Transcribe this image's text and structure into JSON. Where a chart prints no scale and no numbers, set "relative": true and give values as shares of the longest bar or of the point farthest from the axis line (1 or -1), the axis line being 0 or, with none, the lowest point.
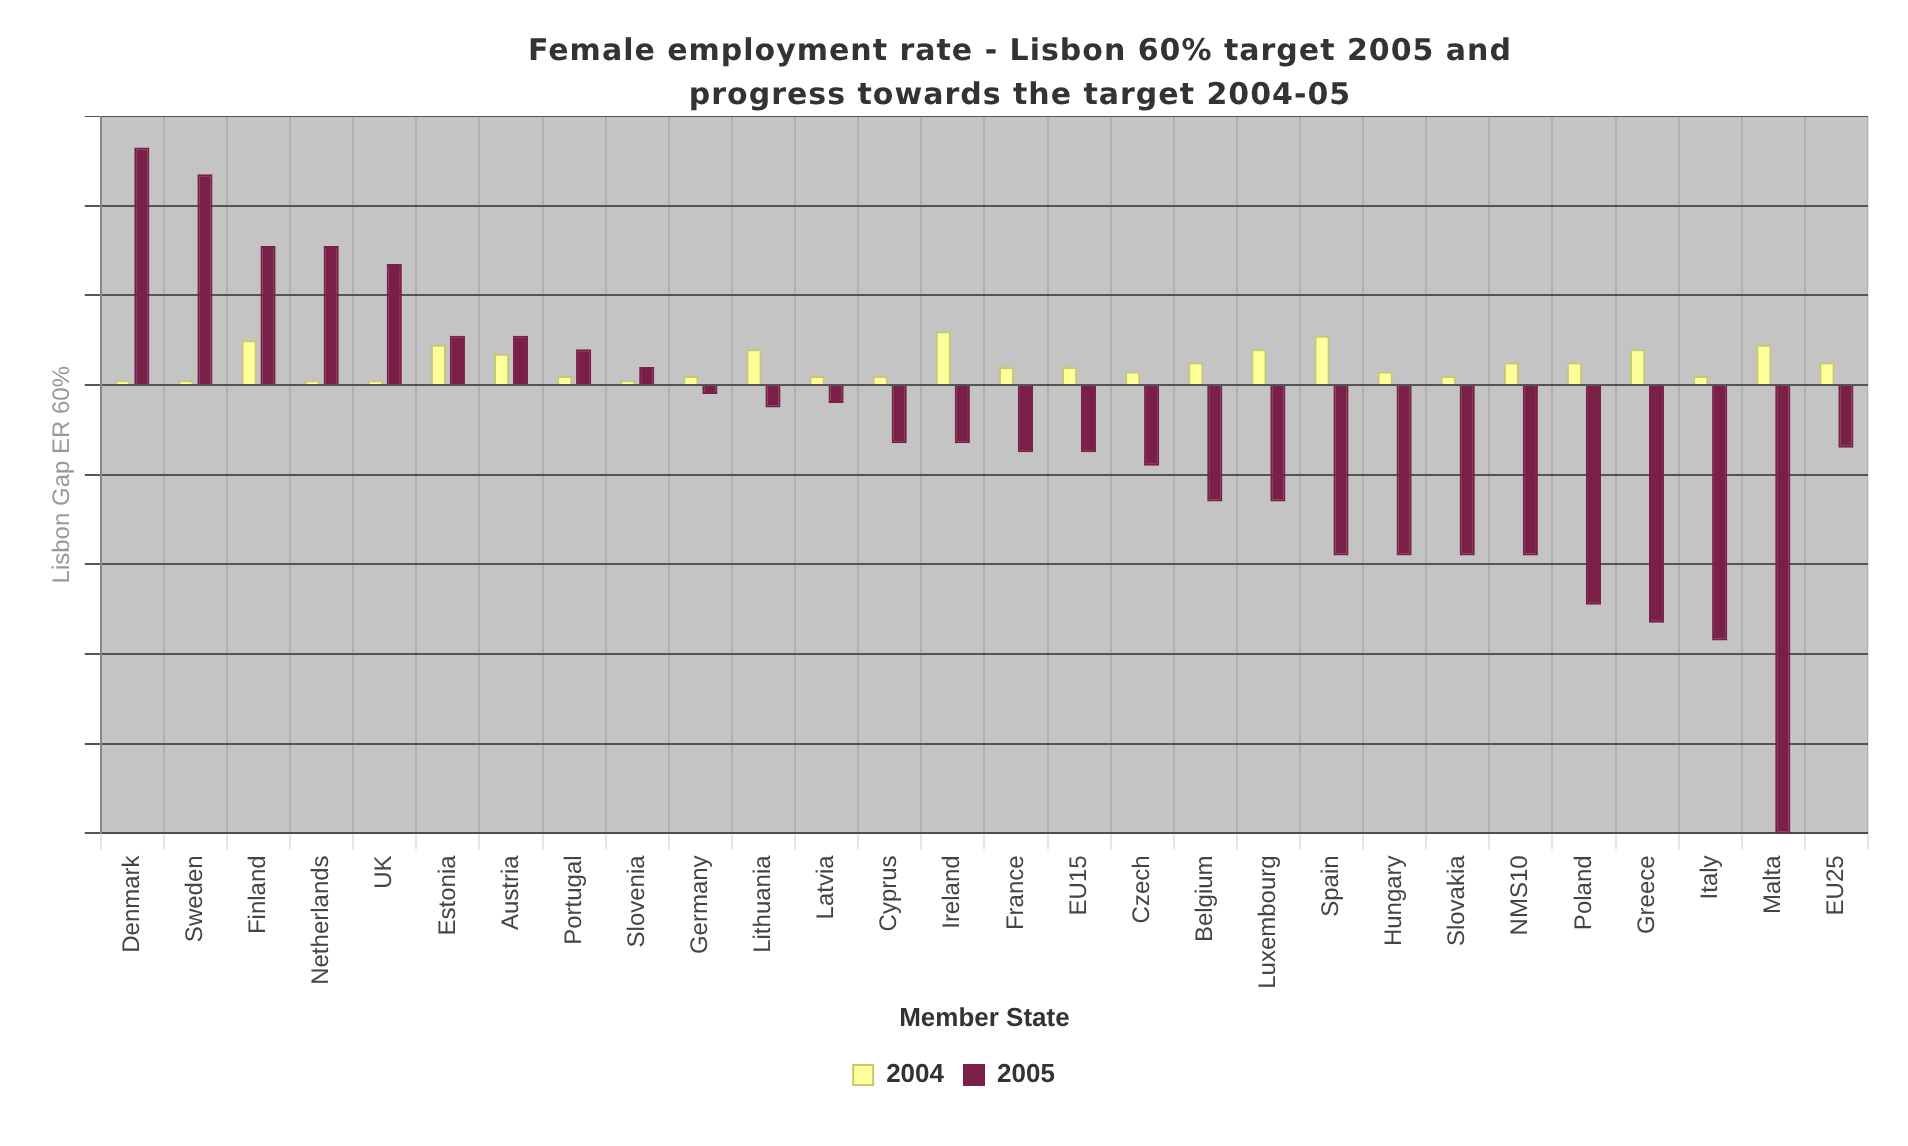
{
  "chart_data": {
    "type": "bar",
    "title": "Female employment rate - Lisbon 60% target 2005 and progress towards the target 2004-05",
    "xlabel": "Member State",
    "ylabel": "Lisbon Gap ER 60%",
    "relative": true,
    "grid": true,
    "legend": "bottom",
    "categories": [
      "Denmark",
      "Sweden",
      "Finland",
      "Netherlands",
      "UK",
      "Estonia",
      "Austria",
      "Portugal",
      "Slovenia",
      "Germany",
      "Lithuania",
      "Latvia",
      "Cyprus",
      "Ireland",
      "France",
      "EU15",
      "Czech",
      "Belgium",
      "Luxembourg",
      "Spain",
      "Hungary",
      "Slovakia",
      "NMS10",
      "Poland",
      "Greece",
      "Italy",
      "Malta",
      "EU25"
    ],
    "series": [
      {
        "name": "2004",
        "color": "#ffff99",
        "values": [
          0.01,
          0.01,
          0.1,
          0.01,
          0.01,
          0.09,
          0.07,
          0.02,
          0.01,
          0.02,
          0.08,
          0.02,
          0.02,
          0.12,
          0.04,
          0.04,
          0.03,
          0.05,
          0.08,
          0.11,
          0.03,
          0.02,
          0.05,
          0.05,
          0.08,
          0.02,
          0.09,
          0.05
        ]
      },
      {
        "name": "2005",
        "color": "#7a1f47",
        "values": [
          0.53,
          0.47,
          0.31,
          0.31,
          0.27,
          0.11,
          0.11,
          0.08,
          0.04,
          -0.02,
          -0.05,
          -0.04,
          -0.13,
          -0.13,
          -0.15,
          -0.15,
          -0.18,
          -0.26,
          -0.26,
          -0.38,
          -0.38,
          -0.38,
          -0.38,
          -0.49,
          -0.53,
          -0.57,
          -1,
          -0.14
        ]
      }
    ]
  }
}
